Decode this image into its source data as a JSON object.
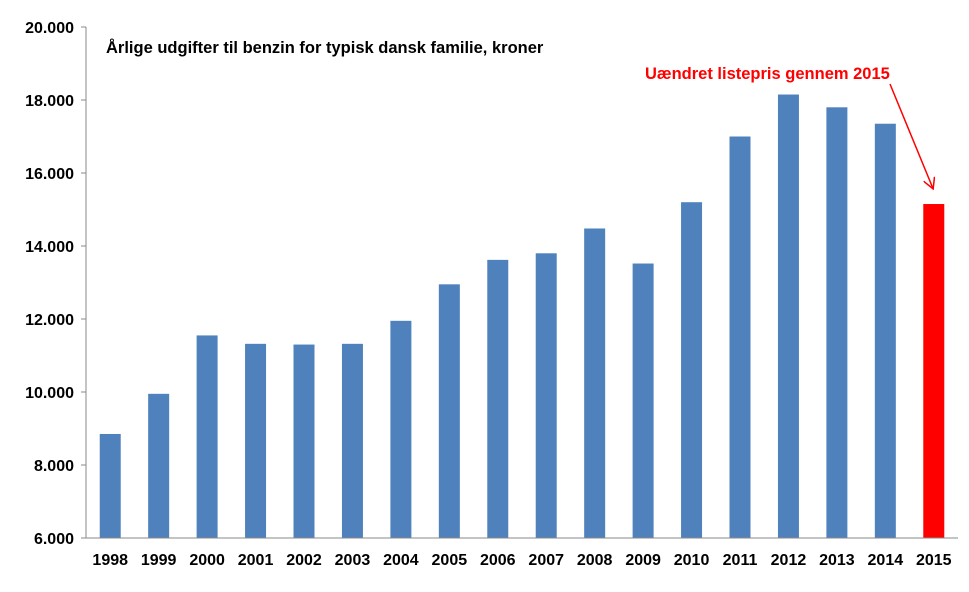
{
  "chart_data": {
    "type": "bar",
    "title": "Årlige udgifter til benzin for typisk dansk familie, kroner",
    "xlabel": "",
    "ylabel": "",
    "categories": [
      "1998",
      "1999",
      "2000",
      "2001",
      "2002",
      "2003",
      "2004",
      "2005",
      "2006",
      "2007",
      "2008",
      "2009",
      "2010",
      "2011",
      "2012",
      "2013",
      "2014",
      "2015"
    ],
    "values": [
      8850,
      9950,
      11550,
      11320,
      11300,
      11320,
      11950,
      12950,
      13620,
      13800,
      14480,
      13520,
      15200,
      17000,
      18150,
      17800,
      17350,
      15150
    ],
    "ylim": [
      6000,
      20000
    ],
    "yticks": [
      6000,
      8000,
      10000,
      12000,
      14000,
      16000,
      18000,
      20000
    ],
    "ytick_labels": [
      "6.000",
      "8.000",
      "10.000",
      "12.000",
      "14.000",
      "16.000",
      "18.000",
      "20.000"
    ],
    "grid": false,
    "legend": "none",
    "colors": {
      "bar": "#4F81BD",
      "highlight": "#FF0000",
      "axis": "#888888"
    },
    "highlight_index": 17,
    "annotation": {
      "text": "Uændret listepris gennem 2015",
      "color": "#FF0000",
      "target_category": "2015"
    }
  }
}
